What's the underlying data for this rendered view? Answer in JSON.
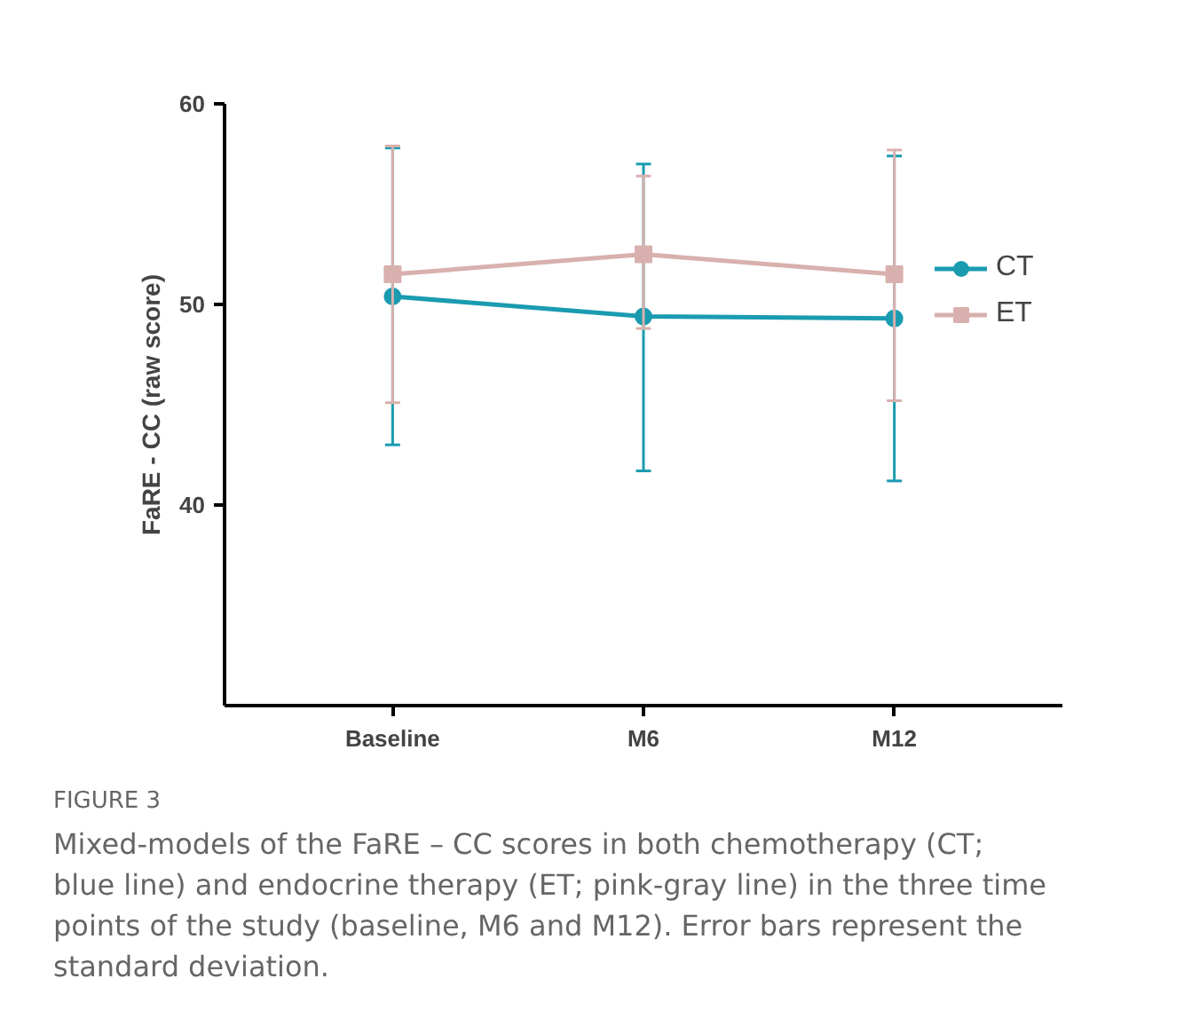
{
  "chart_data": {
    "type": "line",
    "ylabel": "FaRE - CC (raw score)",
    "categories": [
      "Baseline",
      "M6",
      "M12"
    ],
    "ylim": [
      30,
      60
    ],
    "yticks": [
      40,
      50,
      60
    ],
    "grid": false,
    "legend": "right",
    "series": [
      {
        "name": "CT",
        "color": "#1a9bb0",
        "marker": "circle",
        "values": [
          50.4,
          49.4,
          49.3
        ],
        "errors": [
          [
            43.0,
            57.8
          ],
          [
            41.7,
            57.0
          ],
          [
            41.2,
            57.4
          ]
        ]
      },
      {
        "name": "ET",
        "color": "#d8b0ad",
        "marker": "square",
        "values": [
          51.5,
          52.5,
          51.5
        ],
        "errors": [
          [
            45.1,
            57.9
          ],
          [
            48.8,
            56.4
          ],
          [
            45.2,
            57.7
          ]
        ]
      }
    ],
    "annotations": [
      "FIGURE 3",
      "Mixed-models of the FaRE – CC scores in both chemotherapy (CT; blue line) and endocrine therapy (ET; pink-gray line) in the three time points of the study (baseline, M6 and M12). Error bars represent the standard deviation."
    ]
  }
}
